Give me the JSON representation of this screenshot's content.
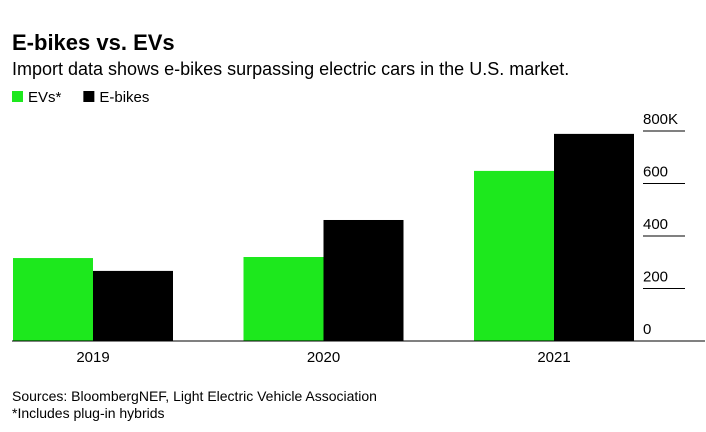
{
  "chart_data": {
    "type": "bar",
    "title": "E-bikes vs. EVs",
    "subtitle": "Import data shows e-bikes surpassing electric cars in the U.S. market.",
    "categories": [
      "2019",
      "2020",
      "2021"
    ],
    "series": [
      {
        "name": "EVs*",
        "color": "#1de81d",
        "values": [
          316,
          320,
          648
        ]
      },
      {
        "name": "E-bikes",
        "color": "#000000",
        "values": [
          267,
          461,
          789
        ]
      }
    ],
    "ylim": [
      0,
      820
    ],
    "yticks": [
      0,
      200,
      400,
      600,
      {
        "value": 800,
        "label": "800K"
      }
    ],
    "source": "Sources: BloombergNEF, Light Electric Vehicle Association",
    "footnote": "*Includes plug-in hybrids"
  }
}
